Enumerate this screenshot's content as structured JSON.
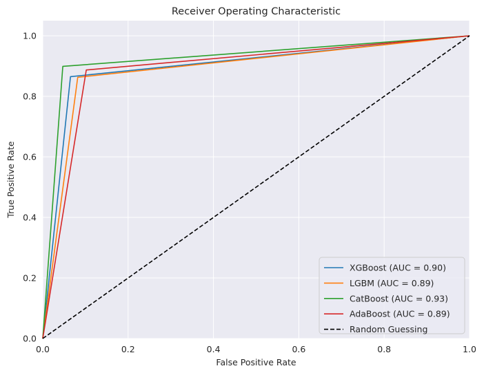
{
  "chart_data": {
    "type": "line",
    "title": "Receiver Operating Characteristic",
    "xlabel": "False Positive Rate",
    "ylabel": "True Positive Rate",
    "xlim": [
      0.0,
      1.0
    ],
    "ylim": [
      0.0,
      1.05
    ],
    "xticks": [
      "0.0",
      "0.2",
      "0.4",
      "0.6",
      "0.8",
      "1.0"
    ],
    "yticks": [
      "0.0",
      "0.2",
      "0.4",
      "0.6",
      "0.8",
      "1.0"
    ],
    "grid": true,
    "legend_position": "bottom-right",
    "series": [
      {
        "name": "XGBoost (AUC = 0.90)",
        "color": "#1f77b4",
        "style": "solid",
        "x": [
          0.0,
          0.065,
          1.0
        ],
        "y": [
          0.0,
          0.865,
          1.0
        ]
      },
      {
        "name": "LGBM (AUC = 0.89)",
        "color": "#ff7f0e",
        "style": "solid",
        "x": [
          0.0,
          0.082,
          1.0
        ],
        "y": [
          0.0,
          0.863,
          1.0
        ]
      },
      {
        "name": "CatBoost (AUC = 0.93)",
        "color": "#2ca02c",
        "style": "solid",
        "x": [
          0.0,
          0.047,
          1.0
        ],
        "y": [
          0.0,
          0.899,
          1.0
        ]
      },
      {
        "name": "AdaBoost (AUC = 0.89)",
        "color": "#d62728",
        "style": "solid",
        "x": [
          0.0,
          0.102,
          1.0
        ],
        "y": [
          0.0,
          0.887,
          1.0
        ]
      },
      {
        "name": "Random Guessing",
        "color": "#000000",
        "style": "dashed",
        "x": [
          0.0,
          1.0
        ],
        "y": [
          0.0,
          1.0
        ]
      }
    ]
  }
}
